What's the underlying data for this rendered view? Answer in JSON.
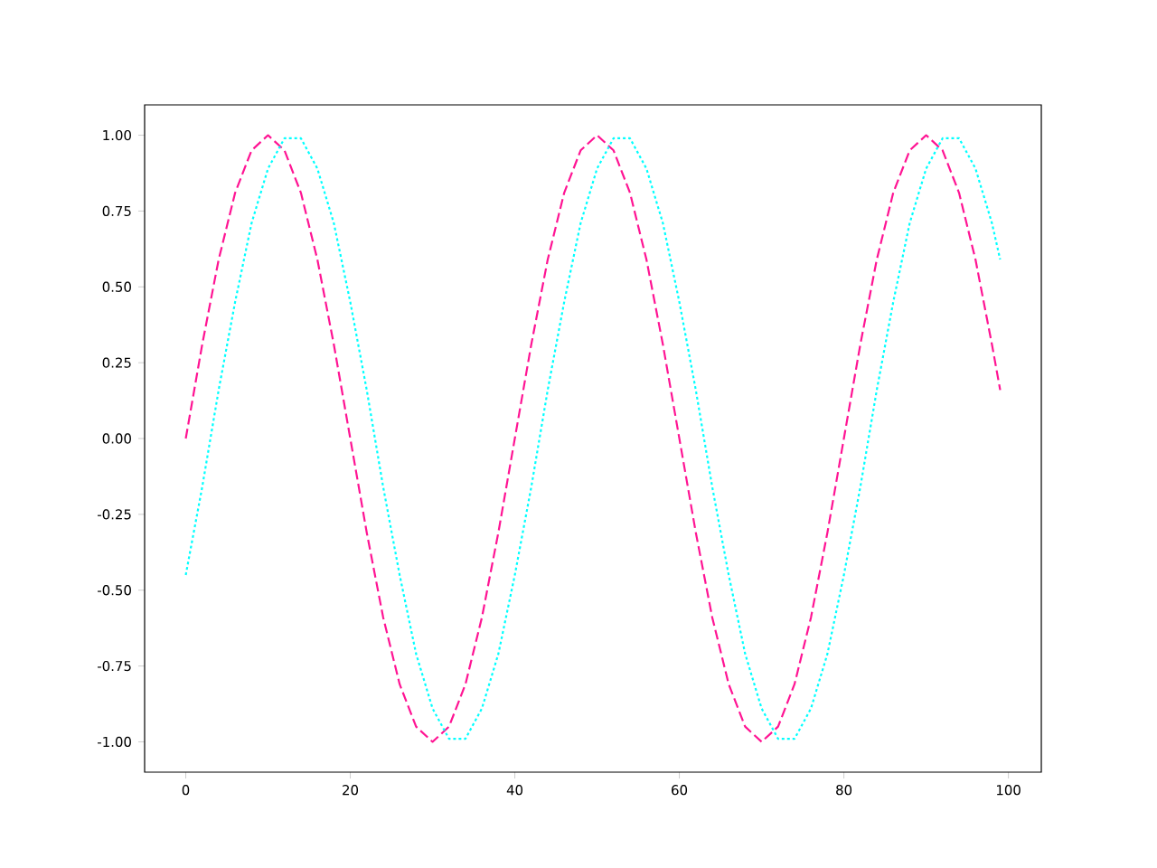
{
  "chart_data": {
    "type": "line",
    "x": [
      0,
      2,
      4,
      6,
      8,
      10,
      12,
      14,
      16,
      18,
      20,
      22,
      24,
      26,
      28,
      30,
      32,
      34,
      36,
      38,
      40,
      42,
      44,
      46,
      48,
      50,
      52,
      54,
      56,
      58,
      60,
      62,
      64,
      66,
      68,
      70,
      72,
      74,
      76,
      78,
      80,
      82,
      84,
      86,
      88,
      90,
      92,
      94,
      96,
      98,
      99
    ],
    "series": [
      {
        "color": "#ff1493",
        "line_style": "dashed",
        "values": [
          0,
          0.31,
          0.59,
          0.81,
          0.95,
          1,
          0.95,
          0.81,
          0.59,
          0.31,
          0,
          -0.31,
          -0.59,
          -0.81,
          -0.95,
          -1,
          -0.95,
          -0.81,
          -0.59,
          -0.31,
          0,
          0.31,
          0.59,
          0.81,
          0.95,
          1,
          0.95,
          0.81,
          0.59,
          0.31,
          0,
          -0.31,
          -0.59,
          -0.81,
          -0.95,
          -1,
          -0.95,
          -0.81,
          -0.59,
          -0.31,
          0,
          0.31,
          0.59,
          0.81,
          0.95,
          1,
          0.95,
          0.81,
          0.59,
          0.31,
          0.16
        ]
      },
      {
        "color": "#00ffff",
        "line_style": "dotted",
        "values": [
          -0.45,
          -0.16,
          0.16,
          0.45,
          0.71,
          0.89,
          0.99,
          0.99,
          0.89,
          0.71,
          0.45,
          0.16,
          -0.16,
          -0.45,
          -0.71,
          -0.89,
          -0.99,
          -0.99,
          -0.89,
          -0.71,
          -0.45,
          -0.16,
          0.16,
          0.45,
          0.71,
          0.89,
          0.99,
          0.99,
          0.89,
          0.71,
          0.45,
          0.16,
          -0.16,
          -0.45,
          -0.71,
          -0.89,
          -0.99,
          -0.99,
          -0.89,
          -0.71,
          -0.45,
          -0.16,
          0.16,
          0.45,
          0.71,
          0.89,
          0.99,
          0.99,
          0.89,
          0.71,
          0.59
        ]
      }
    ],
    "xlim": [
      -5,
      104
    ],
    "ylim": [
      -1.1,
      1.1
    ],
    "xticks": [
      0,
      20,
      40,
      60,
      80,
      100
    ],
    "yticks": [
      {
        "value": -1,
        "label": "-1.00"
      },
      {
        "value": -0.75,
        "label": "-0.75"
      },
      {
        "value": -0.5,
        "label": "-0.50"
      },
      {
        "value": -0.25,
        "label": "-0.25"
      },
      {
        "value": 0,
        "label": "0.00"
      },
      {
        "value": 0.25,
        "label": "0.25"
      },
      {
        "value": 0.5,
        "label": "0.50"
      },
      {
        "value": 0.75,
        "label": "0.75"
      },
      {
        "value": 1,
        "label": "1.00"
      }
    ]
  }
}
